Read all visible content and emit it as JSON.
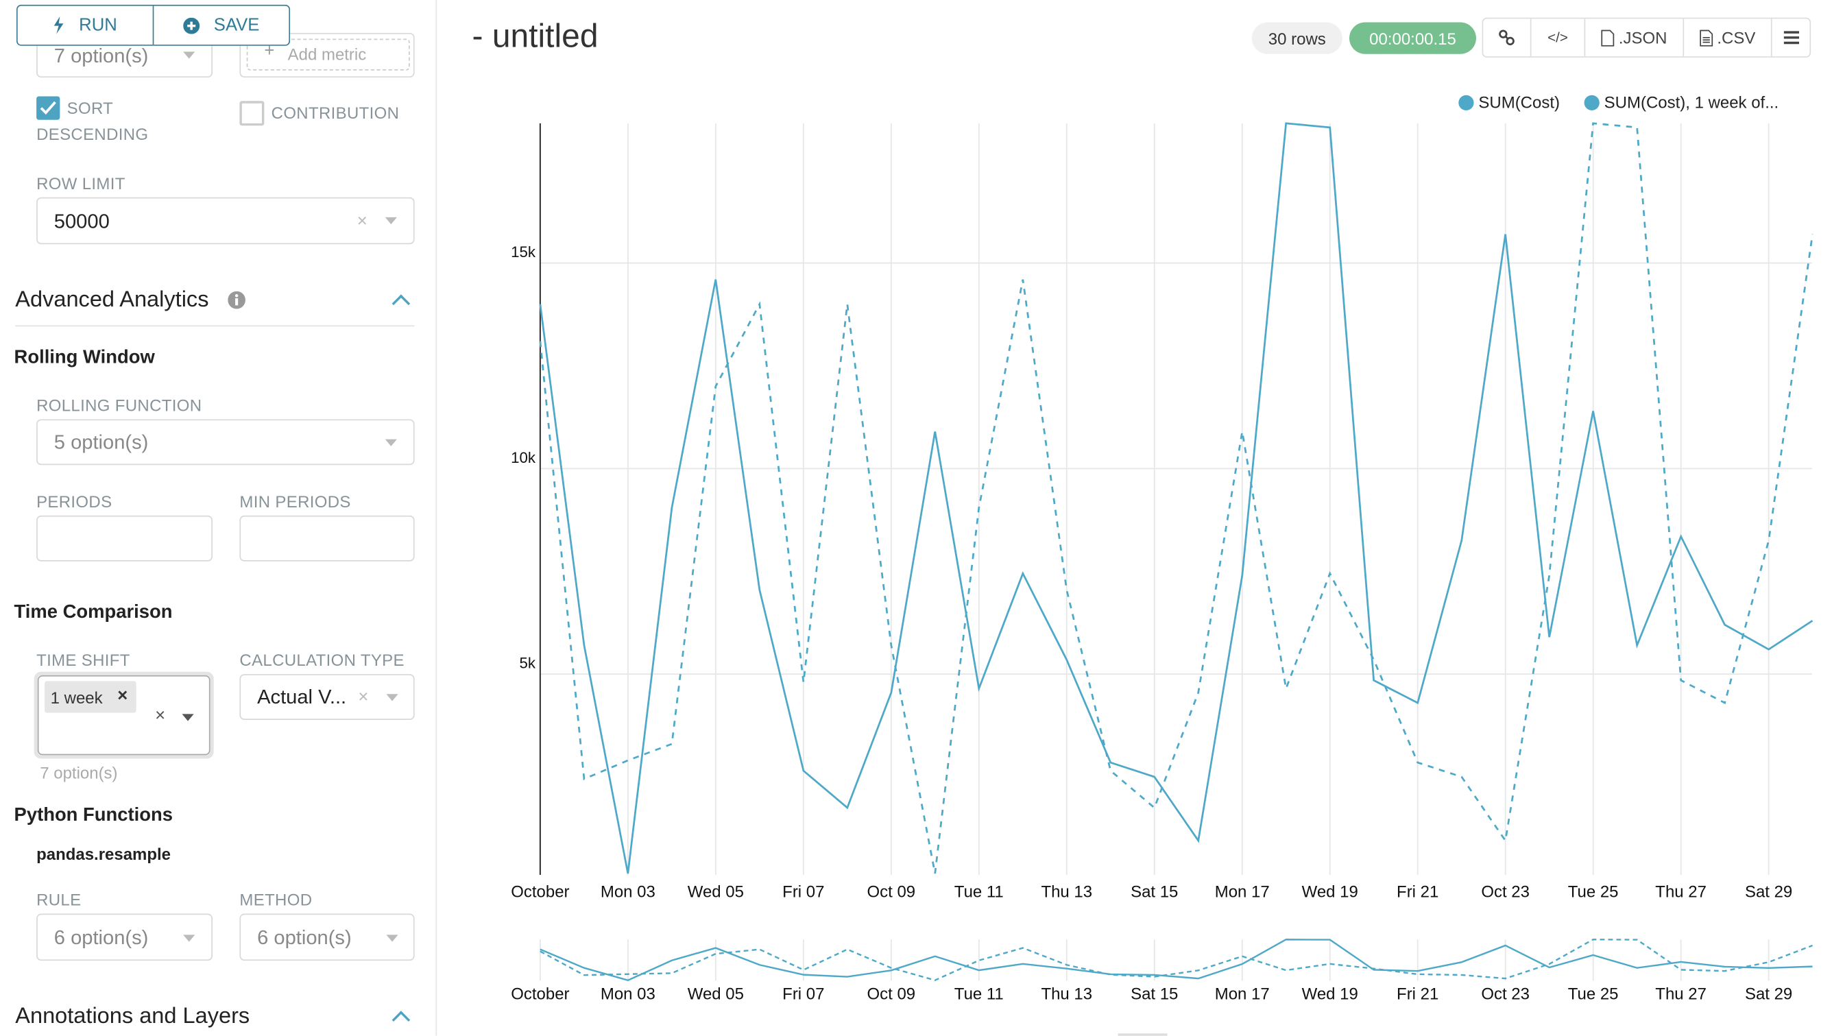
{
  "toolbar": {
    "run_label": "RUN",
    "save_label": "SAVE",
    "run_icon": "bolt-icon",
    "save_icon": "plus-circle-icon"
  },
  "panel": {
    "top_select": {
      "value": "7 option(s)"
    },
    "add_metric": {
      "placeholder": "Add metric"
    },
    "sort_descending": {
      "label_line1": "SORT",
      "label_line2": "DESCENDING",
      "checked": true
    },
    "contribution": {
      "label": "CONTRIBUTION",
      "checked": false
    },
    "row_limit": {
      "label": "ROW LIMIT",
      "value": "50000"
    },
    "advanced_analytics": {
      "title": "Advanced Analytics",
      "expanded": true
    },
    "rolling_window": {
      "title": "Rolling Window",
      "rolling_function_label": "ROLLING FUNCTION",
      "rolling_function_value": "5 option(s)",
      "periods_label": "PERIODS",
      "periods_value": "",
      "min_periods_label": "MIN PERIODS",
      "min_periods_value": ""
    },
    "time_comparison": {
      "title": "Time Comparison",
      "time_shift_label": "TIME SHIFT",
      "time_shift_tag": "1 week",
      "time_shift_hint": "7 option(s)",
      "calc_type_label": "CALCULATION TYPE",
      "calc_type_value": "Actual V..."
    },
    "python_functions": {
      "title": "Python Functions",
      "subtitle": "pandas.resample",
      "rule_label": "RULE",
      "rule_value": "6 option(s)",
      "method_label": "METHOD",
      "method_value": "6 option(s)"
    },
    "annotations": {
      "title": "Annotations and Layers",
      "expanded": true
    }
  },
  "header": {
    "title": "- untitled",
    "rows_badge": "30 rows",
    "timer_badge": "00:00:00.15",
    "timer_color": "#75c08e",
    "actions": {
      "link_icon": "link-icon",
      "embed_icon": "code-icon",
      "json_label": ".JSON",
      "csv_label": ".CSV",
      "menu_icon": "hamburger-icon"
    }
  },
  "chart_data": {
    "type": "line",
    "legend_position": "top-right",
    "color": "#4ea8c8",
    "x": [
      "2016-10-01",
      "2016-10-02",
      "2016-10-03",
      "2016-10-04",
      "2016-10-05",
      "2016-10-06",
      "2016-10-07",
      "2016-10-08",
      "2016-10-09",
      "2016-10-10",
      "2016-10-11",
      "2016-10-12",
      "2016-10-13",
      "2016-10-14",
      "2016-10-15",
      "2016-10-16",
      "2016-10-17",
      "2016-10-18",
      "2016-10-19",
      "2016-10-20",
      "2016-10-21",
      "2016-10-22",
      "2016-10-23",
      "2016-10-24",
      "2016-10-25",
      "2016-10-26",
      "2016-10-27",
      "2016-10-28",
      "2016-10-29",
      "2016-10-30"
    ],
    "x_tick_labels": [
      "October",
      "Mon 03",
      "Wed 05",
      "Fri 07",
      "Oct 09",
      "Tue 11",
      "Thu 13",
      "Sat 15",
      "Mon 17",
      "Wed 19",
      "Fri 21",
      "Oct 23",
      "Tue 25",
      "Thu 27",
      "Sat 29"
    ],
    "y_tick_labels": [
      "5k",
      "10k",
      "15k"
    ],
    "y_ticks": [
      5000,
      10000,
      15000
    ],
    "ylim": [
      0,
      18400
    ],
    "grid": true,
    "series": [
      {
        "name": "SUM(Cost)",
        "style": "solid",
        "values": [
          14000,
          5700,
          150,
          9050,
          14600,
          7050,
          2650,
          1750,
          4550,
          10900,
          4650,
          7450,
          5350,
          2850,
          2500,
          950,
          7400,
          18400,
          18300,
          4850,
          4300,
          8250,
          15700,
          5900,
          11400,
          5700,
          8350,
          6200,
          5600,
          6300
        ]
      },
      {
        "name": "SUM(Cost), 1 week of...",
        "style": "dashed",
        "values": [
          13100,
          2450,
          2900,
          3300,
          12000,
          14000,
          4800,
          14000,
          5700,
          150,
          9050,
          14600,
          7050,
          2650,
          1750,
          4550,
          10900,
          4650,
          7450,
          5350,
          2850,
          2500,
          950,
          7400,
          18400,
          18300,
          4850,
          4300,
          8250,
          15700
        ]
      }
    ]
  }
}
